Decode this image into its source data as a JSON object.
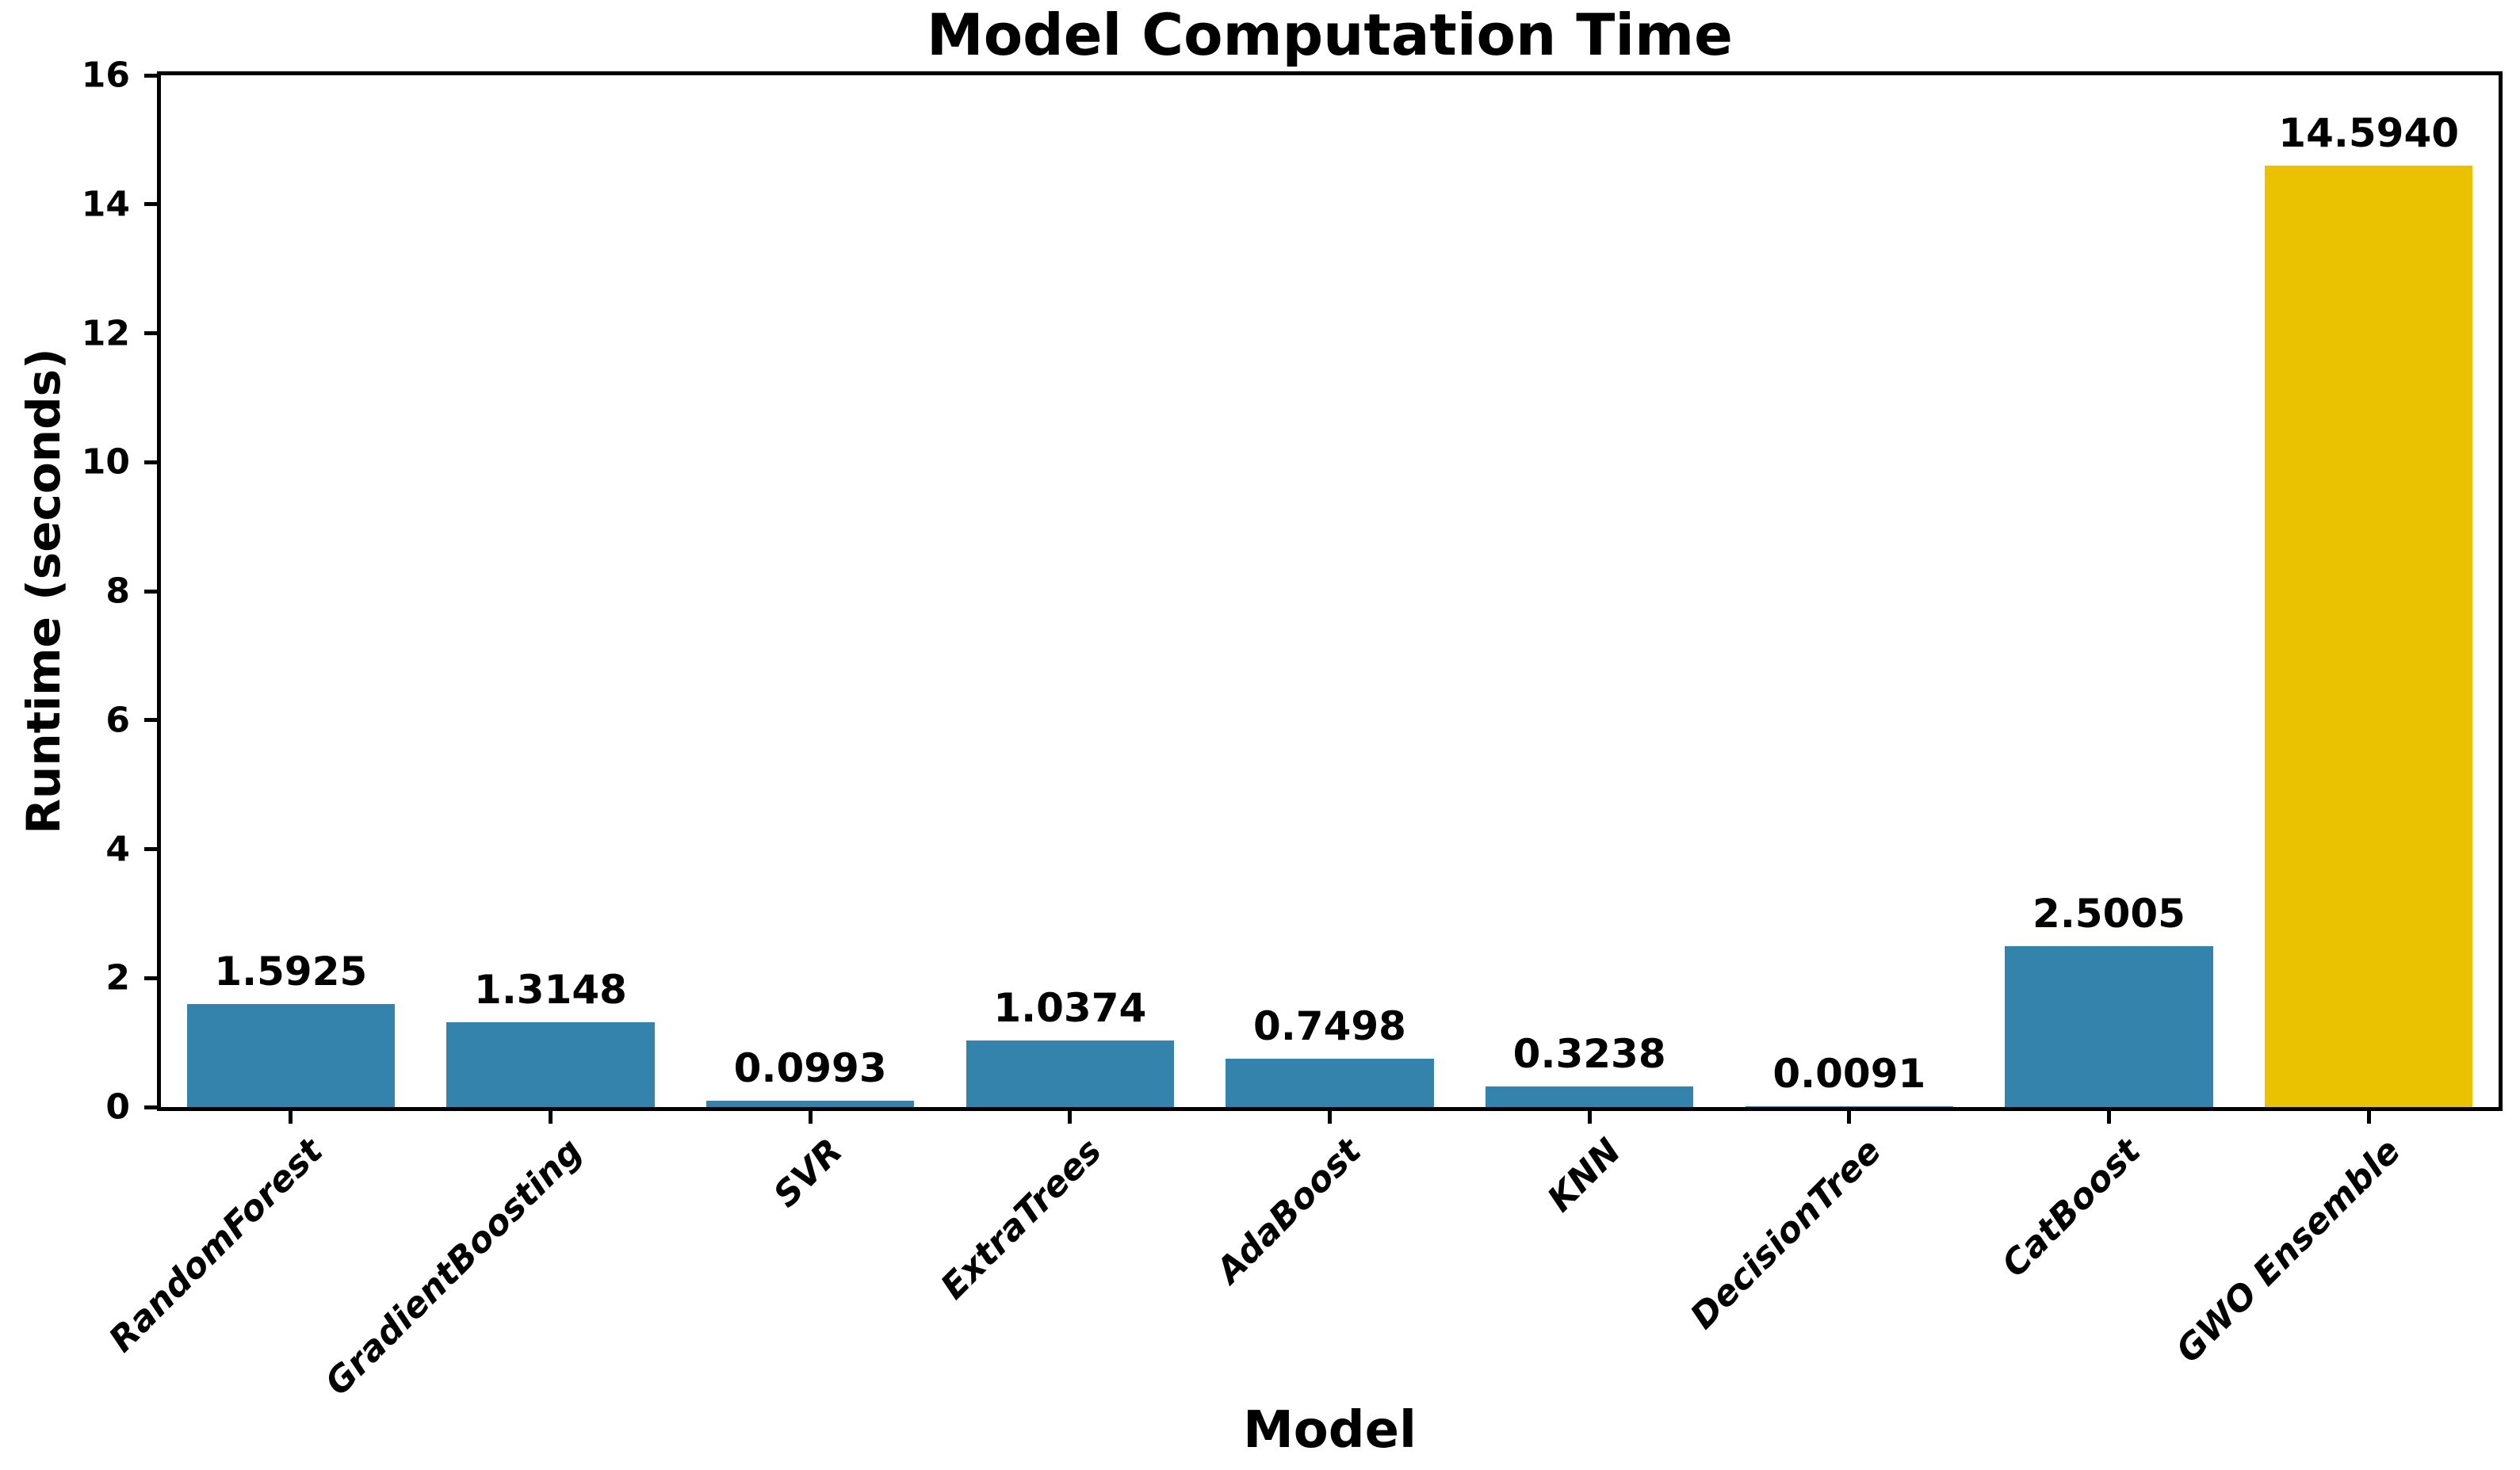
{
  "chart_data": {
    "type": "bar",
    "title": "Model Computation Time",
    "xlabel": "Model",
    "ylabel": "Runtime (seconds)",
    "categories": [
      "RandomForest",
      "GradientBoosting",
      "SVR",
      "ExtraTrees",
      "AdaBoost",
      "KNN",
      "DecisionTree",
      "CatBoost",
      "GWO Ensemble"
    ],
    "values": [
      1.5925,
      1.3148,
      0.0993,
      1.0374,
      0.7498,
      0.3238,
      0.0091,
      2.5005,
      14.594
    ],
    "value_labels": [
      "1.5925",
      "1.3148",
      "0.0993",
      "1.0374",
      "0.7498",
      "0.3238",
      "0.0091",
      "2.5005",
      "14.5940"
    ],
    "bar_colors": [
      "#3383AD",
      "#3383AD",
      "#3383AD",
      "#3383AD",
      "#3383AD",
      "#3383AD",
      "#3383AD",
      "#3383AD",
      "#EAC201"
    ],
    "default_bar_color": "#3383AD",
    "highlight_bar_color": "#EAC201",
    "highlight_category": "GWO Ensemble",
    "yticks": [
      "0",
      "2",
      "4",
      "6",
      "8",
      "10",
      "12",
      "14",
      "16"
    ],
    "ylim": [
      0,
      16
    ],
    "grid": false,
    "legend_position": "none",
    "axis_color": "#000000",
    "background_color": "#FFFFFF"
  }
}
